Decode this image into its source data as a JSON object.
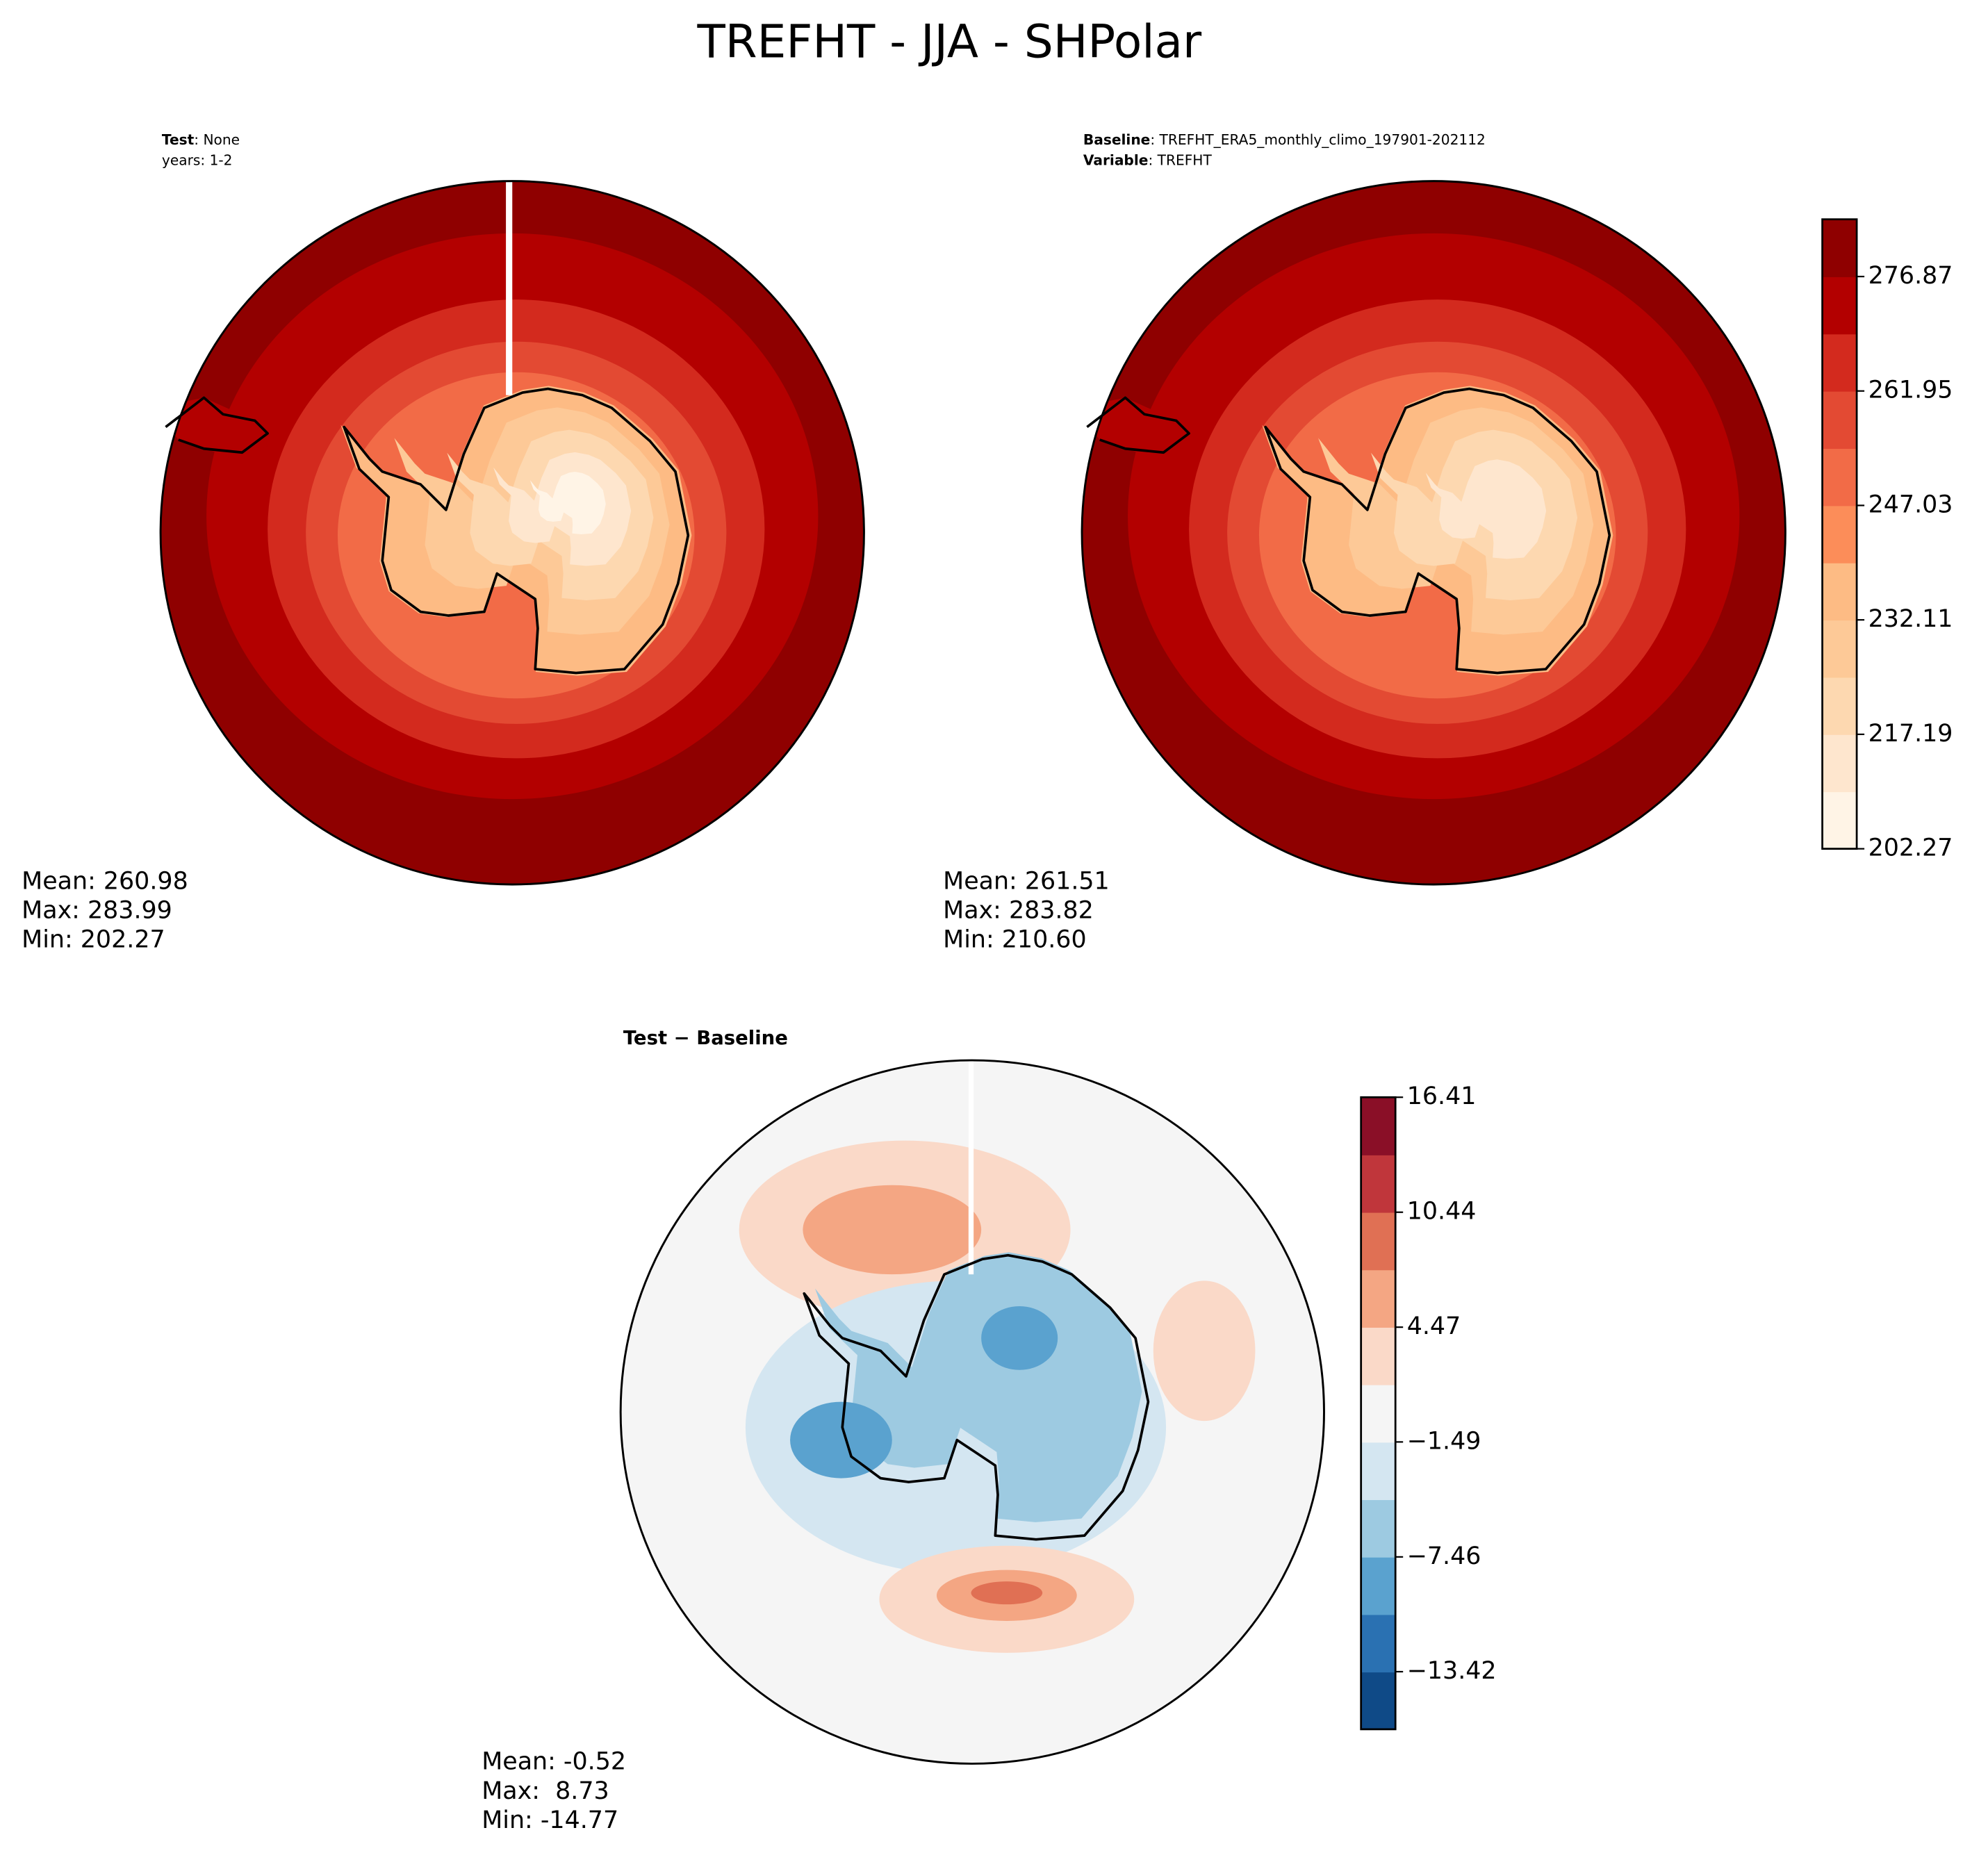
{
  "title": "TREFHT - JJA - SHPolar",
  "panels": [
    {
      "header": [
        {
          "key": "Test",
          "text": ": None"
        },
        {
          "text": "years: 1-2"
        }
      ],
      "stats": [
        "Mean: 260.98",
        "Max: 283.99",
        "Min: 202.27"
      ]
    },
    {
      "header": [
        {
          "key": "Baseline",
          "text": ": TREFHT_ERA5_monthly_climo_197901-202112"
        },
        {
          "key": "Variable",
          "text": ": TREFHT"
        }
      ],
      "stats": [
        "Mean: 261.51",
        "Max: 283.82",
        "Min: 210.60"
      ]
    },
    {
      "header": [
        {
          "key": "Test − Baseline"
        }
      ],
      "stats": [
        "Mean: -0.52",
        "Max:  8.73",
        "Min: -14.77"
      ]
    }
  ],
  "colorbars": [
    {
      "lim": [
        202.27,
        284.33
      ],
      "ticks": [
        202.27,
        217.19,
        232.11,
        247.03,
        261.95,
        276.87
      ],
      "colors": [
        "#fff4e6",
        "#fee6ce",
        "#fdd8b0",
        "#fdc997",
        "#fdbb84",
        "#fc8d59",
        "#f26b47",
        "#e34a33",
        "#d32a1e",
        "#b30000",
        "#8f0000"
      ]
    },
    {
      "lim": [
        -16.41,
        16.41
      ],
      "ticks": [
        {
          "value": -13.42,
          "label": "−13.42"
        },
        {
          "value": -7.46,
          "label": "−7.46"
        },
        {
          "value": -1.49,
          "label": "−1.49"
        },
        4.47,
        10.44,
        16.41
      ],
      "colors": [
        "#0f4a87",
        "#2a71b2",
        "#5aa2cf",
        "#9dcae1",
        "#d4e6f1",
        "#f5f5f5",
        "#fad9c8",
        "#f4a683",
        "#e07054",
        "#c0363b",
        "#8a0f27"
      ]
    }
  ]
}
